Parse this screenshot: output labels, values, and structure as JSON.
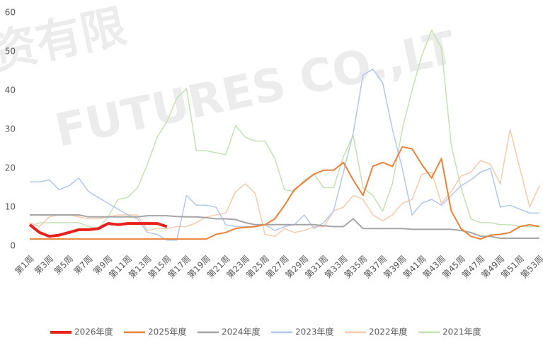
{
  "chart_data": {
    "type": "line",
    "watermark": [
      "资有限",
      "FUTURES CO.,LT"
    ],
    "categories": [
      "第1周",
      null,
      "第3周",
      null,
      "第5周",
      null,
      "第7周",
      null,
      "第9周",
      null,
      "第11周",
      null,
      "第13周",
      null,
      "第15周",
      null,
      "第17周",
      null,
      "第19周",
      null,
      "第21周",
      null,
      "第23周",
      null,
      "第25周",
      null,
      "第27周",
      null,
      "第29周",
      null,
      "第31周",
      null,
      "第33周",
      null,
      "第35周",
      null,
      "第37周",
      null,
      "第39周",
      null,
      "第41周",
      null,
      "第43周",
      null,
      "第45周",
      null,
      "第47周",
      null,
      "第49周",
      null,
      "第51周",
      null,
      "第53周"
    ],
    "ylim": [
      0,
      60
    ],
    "yticks": [
      0,
      10,
      20,
      30,
      40,
      50,
      60
    ],
    "grid": false,
    "legend": "bottom",
    "series": [
      {
        "name": "2026年度",
        "color": "#e8201c",
        "width": 4,
        "values": [
          5.5,
          3.5,
          2.5,
          2.8,
          3.5,
          4.2,
          4.2,
          4.5,
          5.8,
          5.5,
          5.8,
          5.8,
          5.8,
          5.8,
          5,
          null,
          null,
          null,
          null,
          null,
          null,
          null,
          null,
          null,
          null,
          null,
          null,
          null,
          null,
          null,
          null,
          null,
          null,
          null,
          null,
          null,
          null,
          null,
          null,
          null,
          null,
          null,
          null,
          null,
          null,
          null,
          null,
          null,
          null,
          null,
          null,
          null,
          null
        ]
      },
      {
        "name": "2025年度",
        "color": "#e9823a",
        "width": 2,
        "values": [
          1.8,
          1.8,
          1.8,
          1.8,
          1.8,
          1.8,
          1.8,
          1.8,
          1.8,
          1.8,
          1.8,
          1.8,
          1.8,
          1.8,
          1.8,
          1.8,
          1.8,
          1.8,
          1.8,
          3,
          3.5,
          4.5,
          4.8,
          5,
          5.5,
          7,
          10.5,
          14.5,
          16.5,
          18.5,
          19.5,
          19.5,
          21.5,
          17,
          13,
          20.5,
          21.5,
          20.5,
          25.5,
          25,
          21,
          17.5,
          22.5,
          9,
          4.5,
          2.5,
          1.8,
          2.8,
          3,
          3.5,
          5,
          5.5,
          5
        ]
      },
      {
        "name": "2024年度",
        "color": "#a5a5a5",
        "width": 2,
        "values": [
          8,
          8,
          8,
          8,
          8,
          8,
          7.5,
          7.5,
          7.5,
          7.5,
          7.5,
          7.5,
          7.8,
          7.8,
          7.8,
          7.6,
          7.5,
          7.5,
          7.3,
          7,
          7,
          6.8,
          6,
          5.5,
          5.5,
          5.5,
          5.5,
          5.5,
          5.5,
          5.5,
          5.2,
          5,
          5,
          7,
          4.5,
          4.5,
          4.5,
          4.5,
          4.5,
          4.3,
          4.3,
          4.3,
          4.3,
          4.3,
          4,
          3.5,
          2.5,
          2.5,
          2,
          2,
          2,
          2,
          2
        ]
      },
      {
        "name": "2023年度",
        "color": "#b4c7e7",
        "width": 1.5,
        "values": [
          16.5,
          16.5,
          17,
          14.5,
          15.5,
          17.5,
          14,
          12.5,
          11,
          9.5,
          8,
          7,
          3.5,
          3,
          1.5,
          1.5,
          13,
          10.5,
          10.5,
          10,
          5.5,
          5,
          5,
          5,
          5.5,
          4,
          5,
          5.5,
          8,
          4.5,
          6,
          9,
          19,
          29,
          44,
          45.5,
          42,
          30,
          20,
          8,
          11,
          12,
          10.5,
          13,
          15.5,
          17,
          19,
          20,
          10,
          10.5,
          9.5,
          8.5,
          8.5
        ]
      },
      {
        "name": "2022年度",
        "color": "#f8cbad",
        "width": 1.5,
        "values": [
          6,
          5,
          7.5,
          8,
          8,
          7.5,
          7,
          7,
          7.5,
          8,
          8,
          8,
          4,
          4.5,
          4.5,
          5,
          5,
          6,
          7.5,
          8,
          8.5,
          14,
          16,
          13.5,
          3,
          2.5,
          4.5,
          3.5,
          4,
          5,
          5,
          9,
          10,
          13,
          12,
          8,
          6.5,
          8,
          11,
          12,
          18.5,
          19,
          11,
          14,
          18,
          19,
          22,
          21,
          16,
          30,
          20,
          10,
          15.5
        ]
      },
      {
        "name": "2021年度",
        "color": "#c5e0b4",
        "width": 1.5,
        "values": [
          5,
          6,
          6,
          6,
          6,
          6,
          5,
          4.5,
          7.5,
          12,
          12.5,
          15,
          21,
          28,
          32,
          38,
          40.5,
          24.5,
          24.5,
          24,
          23.5,
          31,
          28,
          27,
          27,
          22.5,
          14.5,
          14,
          17,
          18.5,
          15,
          15,
          23,
          28.5,
          15,
          13,
          9,
          16,
          30,
          40,
          49,
          55.5,
          51,
          26,
          15,
          7,
          6,
          6,
          5.5,
          5.5,
          5,
          5,
          5
        ]
      }
    ]
  }
}
